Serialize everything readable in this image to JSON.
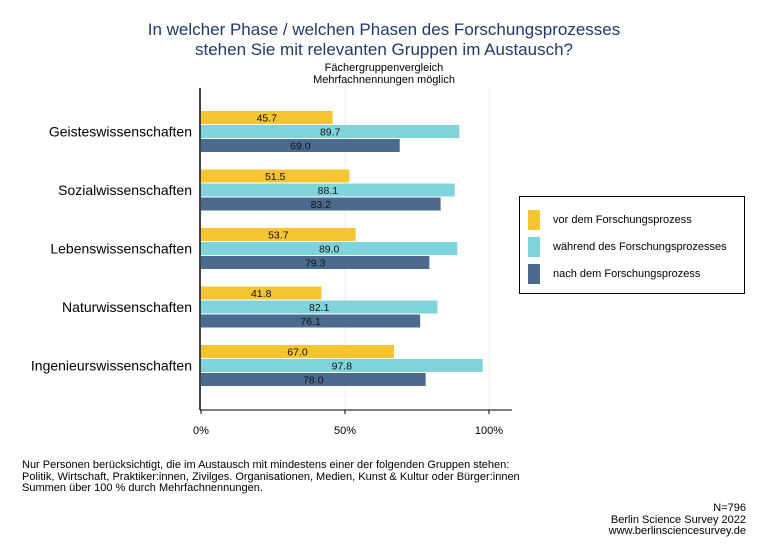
{
  "title_line1": "In welcher Phase / welchen Phasen des Forschungsprozesses",
  "title_line2": "stehen Sie mit relevanten Gruppen im Austausch?",
  "subtitle_line1": "Fächergruppenvergleich",
  "subtitle_line2": "Mehrfachnennungen möglich",
  "chart_data": {
    "type": "bar",
    "orientation": "horizontal",
    "categories": [
      "Geisteswissenschaften",
      "Sozialwissenschaften",
      "Lebenswissenschaften",
      "Naturwissenschaften",
      "Ingenieurswissenschaften"
    ],
    "series": [
      {
        "name": "vor dem Forschungsprozess",
        "color": "#f5c431",
        "values": [
          45.7,
          51.5,
          53.7,
          41.8,
          67.0
        ]
      },
      {
        "name": "während des Forschungsprozesses",
        "color": "#7fd3da",
        "values": [
          89.7,
          88.1,
          89.0,
          82.1,
          97.8
        ]
      },
      {
        "name": "nach dem Forschungsprozess",
        "color": "#4b6b8e",
        "values": [
          69.0,
          83.2,
          79.3,
          76.1,
          78.0
        ]
      }
    ],
    "xlim": [
      0,
      100
    ],
    "x_ticks": [
      0,
      50,
      100
    ],
    "x_tick_labels": [
      "0%",
      "50%",
      "100%"
    ],
    "grid": true,
    "legend_position": "right"
  },
  "note_line1": "Nur Personen berücksichtigt, die im Austausch mit mindestens einer der folgenden Gruppen stehen:",
  "note_line2": "Politik, Wirtschaft, Praktiker:innen, Zivilges. Organisationen, Medien, Kunst & Kultur oder Bürger:innen",
  "note_line3": "Summen über 100 % durch Mehrfachnennungen.",
  "credit_n": "N=796",
  "credit_survey": "Berlin Science Survey 2022",
  "credit_url": "www.berlinsciencesurvey.de"
}
